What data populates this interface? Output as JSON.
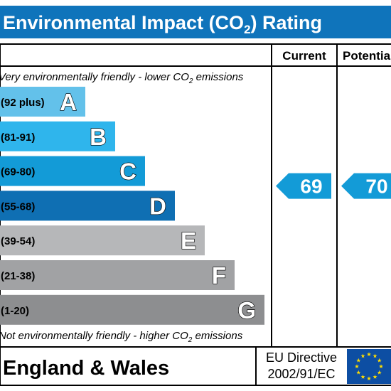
{
  "chart_data": {
    "type": "bar",
    "title_main": "Environmental Impact (CO",
    "title_sub": "2",
    "title_end": ") Rating",
    "columns": {
      "current": "Current",
      "potential": "Potential"
    },
    "top_note": {
      "pre": "Very environmentally friendly - lower CO",
      "sub": "2",
      "post": " emissions"
    },
    "bottom_note": {
      "pre": "Not environmentally friendly - higher CO",
      "sub": "2",
      "post": " emissions"
    },
    "bands": [
      {
        "letter": "A",
        "range": "(92 plus)",
        "color": "#63c1ea"
      },
      {
        "letter": "B",
        "range": "(81-91)",
        "color": "#2fb5ec"
      },
      {
        "letter": "C",
        "range": "(69-80)",
        "color": "#139bd7"
      },
      {
        "letter": "D",
        "range": "(55-68)",
        "color": "#0f6fb3"
      },
      {
        "letter": "E",
        "range": "(39-54)",
        "color": "#b6b7b9"
      },
      {
        "letter": "F",
        "range": "(21-38)",
        "color": "#a1a2a4"
      },
      {
        "letter": "G",
        "range": "(1-20)",
        "color": "#8d8e90"
      }
    ],
    "current": {
      "value": 69,
      "band": "C",
      "color": "#139bd7"
    },
    "potential": {
      "value": 70,
      "band": "C",
      "color": "#139bd7"
    },
    "footer": {
      "region": "England & Wales",
      "directive_line1": "EU Directive",
      "directive_line2": "2002/91/EC"
    },
    "header_color": "#0f74bb",
    "eu_flag_color": "#0d4ea3",
    "eu_star_color": "#ffdd00"
  }
}
